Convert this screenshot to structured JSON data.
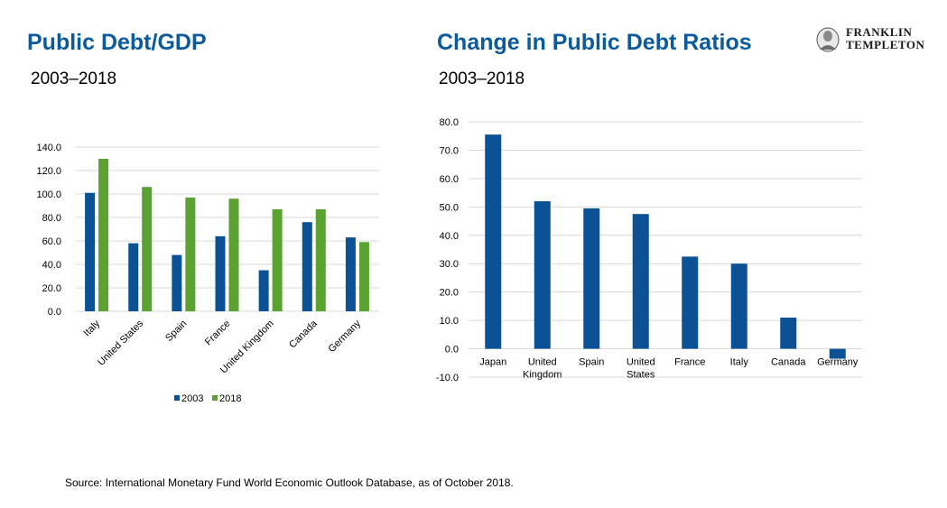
{
  "left_panel": {
    "title": "Public Debt/GDP",
    "subtitle": "2003–2018"
  },
  "right_panel": {
    "title": "Change in Public Debt Ratios",
    "subtitle": "2003–2018"
  },
  "logo": {
    "line1": "FRANKLIN",
    "line2": "TEMPLETON"
  },
  "source": "Source: International Monetary Fund World Economic Outlook Database, as of October 2018.",
  "colors": {
    "title": "#0b5a9c",
    "series_2003": "#0b5196",
    "series_2018": "#5aa333",
    "bar_change": "#0b5196",
    "grid": "#d9d9d9"
  },
  "chart_data": [
    {
      "type": "bar",
      "categories": [
        "Italy",
        "United States",
        "Spain",
        "France",
        "United Kingdom",
        "Canada",
        "Germany"
      ],
      "series": [
        {
          "name": "2003",
          "values": [
            101,
            58,
            48,
            64,
            35,
            76,
            63
          ]
        },
        {
          "name": "2018",
          "values": [
            130,
            106,
            97,
            96,
            87,
            87,
            59
          ]
        }
      ],
      "ylim": [
        0,
        140
      ],
      "yticks": [
        "0.0",
        "20.0",
        "40.0",
        "60.0",
        "80.0",
        "100.0",
        "120.0",
        "140.0"
      ],
      "grid": true,
      "legend": "bottom"
    },
    {
      "type": "bar",
      "categories": [
        "Japan",
        "United Kingdom",
        "Spain",
        "United States",
        "France",
        "Italy",
        "Canada",
        "Germany"
      ],
      "category_lines": [
        [
          "Japan"
        ],
        [
          "United",
          "Kingdom"
        ],
        [
          "Spain"
        ],
        [
          "United",
          "States"
        ],
        [
          "France"
        ],
        [
          "Italy"
        ],
        [
          "Canada"
        ],
        [
          "Germany"
        ]
      ],
      "values": [
        75.5,
        52,
        49.5,
        47.5,
        32.5,
        30,
        11,
        -3.5
      ],
      "ylim": [
        -10,
        80
      ],
      "yticks": [
        "-10.0",
        "0.0",
        "10.0",
        "20.0",
        "30.0",
        "40.0",
        "50.0",
        "60.0",
        "70.0",
        "80.0"
      ],
      "grid": true
    }
  ]
}
